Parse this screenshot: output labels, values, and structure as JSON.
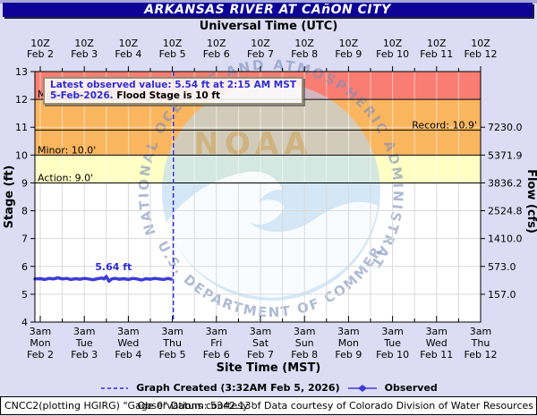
{
  "colors": {
    "page_bg": "#dcdcf4",
    "top_strip": "#a9a9d9",
    "title_bar": "#0d0396",
    "title_text": "#ffffff",
    "band_red": "#f97d72",
    "band_orange": "#fab55f",
    "band_yellow": "#ffffc4",
    "grid_grey": "#d9d9d9",
    "grid_white": "rgba(255,255,255,0.55)",
    "observed": "#3c3cd4",
    "value_blue": "#2d2dd8",
    "current_line": "#2a2ae0",
    "watermark_circle": "#b9d9f1",
    "watermark_text": "rgba(120,140,185,0.6)",
    "watermark_gold": "rgba(205,150,60,0.45)"
  },
  "header": {
    "title": "ARKANSAS RIVER AT CAñON CITY"
  },
  "info_box": {
    "line1": "Latest observed value: 5.54 ft at 2:15 AM MST",
    "line2_date": "5-Feb-2026.",
    "line2_rest": " Flood Stage is 10 ft"
  },
  "legend": {
    "created_label": "Graph Created (3:32AM Feb 5, 2026)",
    "observed_label": "Observed"
  },
  "footer": {
    "left": "CNCC2(plotting HGIRG) \"Gage 0\" Datum: 5342.13'",
    "right": "Observations courtesy of Data courtesy of Colorado Division of Water Resources"
  },
  "watermark": {
    "acronym": "NOAA",
    "ring_text": "NATIONAL OCEANIC AND ATMOSPHERIC ADMINISTRATION",
    "bottom_text": "U.S. DEPARTMENT OF COMMERCE"
  },
  "chart_data": {
    "type": "line",
    "title": "ARKANSAS RIVER AT CAñON CITY",
    "x_axis": {
      "top_label": "Universal Time (UTC)",
      "bottom_label": "Site Time (MST)",
      "ticks": [
        {
          "utc": "10Z",
          "time": "3am",
          "dow": "Mon",
          "date": "Feb 2"
        },
        {
          "utc": "10Z",
          "time": "3am",
          "dow": "Tue",
          "date": "Feb 3"
        },
        {
          "utc": "10Z",
          "time": "3am",
          "dow": "Wed",
          "date": "Feb 4"
        },
        {
          "utc": "10Z",
          "time": "3am",
          "dow": "Thu",
          "date": "Feb 5"
        },
        {
          "utc": "10Z",
          "time": "3am",
          "dow": "Fri",
          "date": "Feb 6"
        },
        {
          "utc": "10Z",
          "time": "3am",
          "dow": "Sat",
          "date": "Feb 7"
        },
        {
          "utc": "10Z",
          "time": "3am",
          "dow": "Sun",
          "date": "Feb 8"
        },
        {
          "utc": "10Z",
          "time": "3am",
          "dow": "Mon",
          "date": "Feb 9"
        },
        {
          "utc": "10Z",
          "time": "3am",
          "dow": "Tue",
          "date": "Feb 10"
        },
        {
          "utc": "10Z",
          "time": "3am",
          "dow": "Wed",
          "date": "Feb 11"
        },
        {
          "utc": "10Z",
          "time": "3am",
          "dow": "Thu",
          "date": "Feb 12"
        }
      ]
    },
    "stage_axis": {
      "label": "Stage (ft)",
      "min": 4,
      "max": 13,
      "tick_step": 1
    },
    "flow_axis": {
      "label": "Flow (cfs)",
      "ticks": [
        {
          "stage": 11,
          "value": "7230.0"
        },
        {
          "stage": 10,
          "value": "5371.9"
        },
        {
          "stage": 9,
          "value": "3836.2"
        },
        {
          "stage": 8,
          "value": "2524.8"
        },
        {
          "stage": 7,
          "value": "1410.0"
        },
        {
          "stage": 6,
          "value": "573.0"
        },
        {
          "stage": 5,
          "value": "157.0"
        }
      ]
    },
    "flood_categories": {
      "action": {
        "stage": 9.0,
        "label": "Action: 9.0'",
        "band": [
          9,
          10
        ]
      },
      "minor": {
        "stage": 10.0,
        "label": "Minor: 10.0'",
        "band": [
          10,
          12
        ]
      },
      "moderate": {
        "stage": 12.0,
        "label": "Moderate: 12.0'",
        "band": [
          12,
          13
        ]
      },
      "record": {
        "stage": 10.9,
        "label": "Record: 10.9'"
      }
    },
    "flood_stage_note": "Flood Stage is 10 ft",
    "latest_observed": {
      "value_ft": 5.54,
      "time": "2:15 AM MST 5-Feb-2026"
    },
    "max_label": {
      "text": "5.64 ft",
      "t_days": 1.5,
      "stage": 5.64
    },
    "current_time": {
      "t_days": 3.022
    },
    "observed_series": {
      "name": "Observed",
      "points": [
        [
          -0.12,
          5.55
        ],
        [
          0.0,
          5.56
        ],
        [
          0.1,
          5.53
        ],
        [
          0.2,
          5.57
        ],
        [
          0.3,
          5.55
        ],
        [
          0.4,
          5.59
        ],
        [
          0.5,
          5.55
        ],
        [
          0.6,
          5.57
        ],
        [
          0.7,
          5.53
        ],
        [
          0.8,
          5.56
        ],
        [
          0.9,
          5.54
        ],
        [
          1.0,
          5.57
        ],
        [
          1.1,
          5.55
        ],
        [
          1.2,
          5.52
        ],
        [
          1.3,
          5.56
        ],
        [
          1.4,
          5.58
        ],
        [
          1.45,
          5.55
        ],
        [
          1.5,
          5.64
        ],
        [
          1.56,
          5.47
        ],
        [
          1.62,
          5.55
        ],
        [
          1.7,
          5.57
        ],
        [
          1.8,
          5.54
        ],
        [
          1.9,
          5.56
        ],
        [
          2.0,
          5.53
        ],
        [
          2.1,
          5.57
        ],
        [
          2.2,
          5.55
        ],
        [
          2.3,
          5.51
        ],
        [
          2.4,
          5.56
        ],
        [
          2.5,
          5.54
        ],
        [
          2.6,
          5.57
        ],
        [
          2.7,
          5.55
        ],
        [
          2.8,
          5.53
        ],
        [
          2.9,
          5.57
        ],
        [
          2.97,
          5.54
        ]
      ]
    }
  }
}
